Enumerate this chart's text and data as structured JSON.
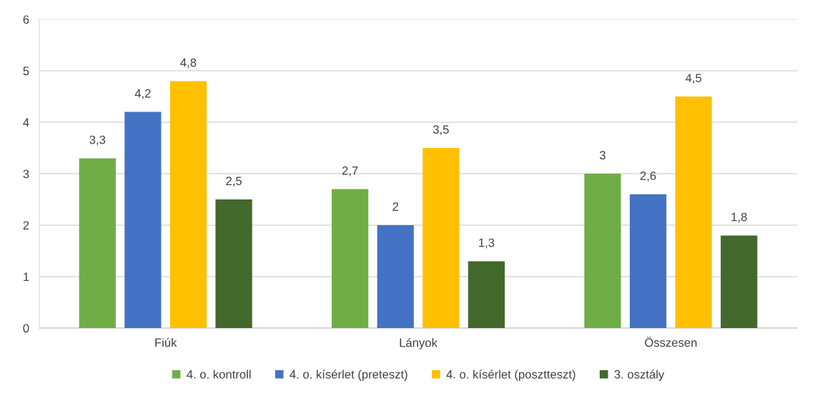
{
  "chart_data": {
    "type": "bar",
    "categories": [
      "Fiúk",
      "Lányok",
      "Összesen"
    ],
    "series": [
      {
        "name": "4. o. kontroll",
        "color": "#70ad47",
        "values": [
          3.3,
          2.7,
          3
        ],
        "value_labels": [
          "3,3",
          "2,7",
          "3"
        ]
      },
      {
        "name": "4. o. kísérlet (preteszt)",
        "color": "#4472c4",
        "values": [
          4.2,
          2,
          2.6
        ],
        "value_labels": [
          "4,2",
          "2",
          "2,6"
        ]
      },
      {
        "name": "4. o. kísérlet (posztteszt)",
        "color": "#ffc000",
        "values": [
          4.8,
          3.5,
          4.5
        ],
        "value_labels": [
          "4,8",
          "3,5",
          "4,5"
        ]
      },
      {
        "name": "3. osztály",
        "color": "#43682b",
        "values": [
          2.5,
          1.3,
          1.8
        ],
        "value_labels": [
          "2,5",
          "1,3",
          "1,8"
        ]
      }
    ],
    "ylim": [
      0,
      6
    ],
    "yticks": [
      0,
      1,
      2,
      3,
      4,
      5,
      6
    ],
    "grid": "y",
    "legend": "bottom"
  }
}
